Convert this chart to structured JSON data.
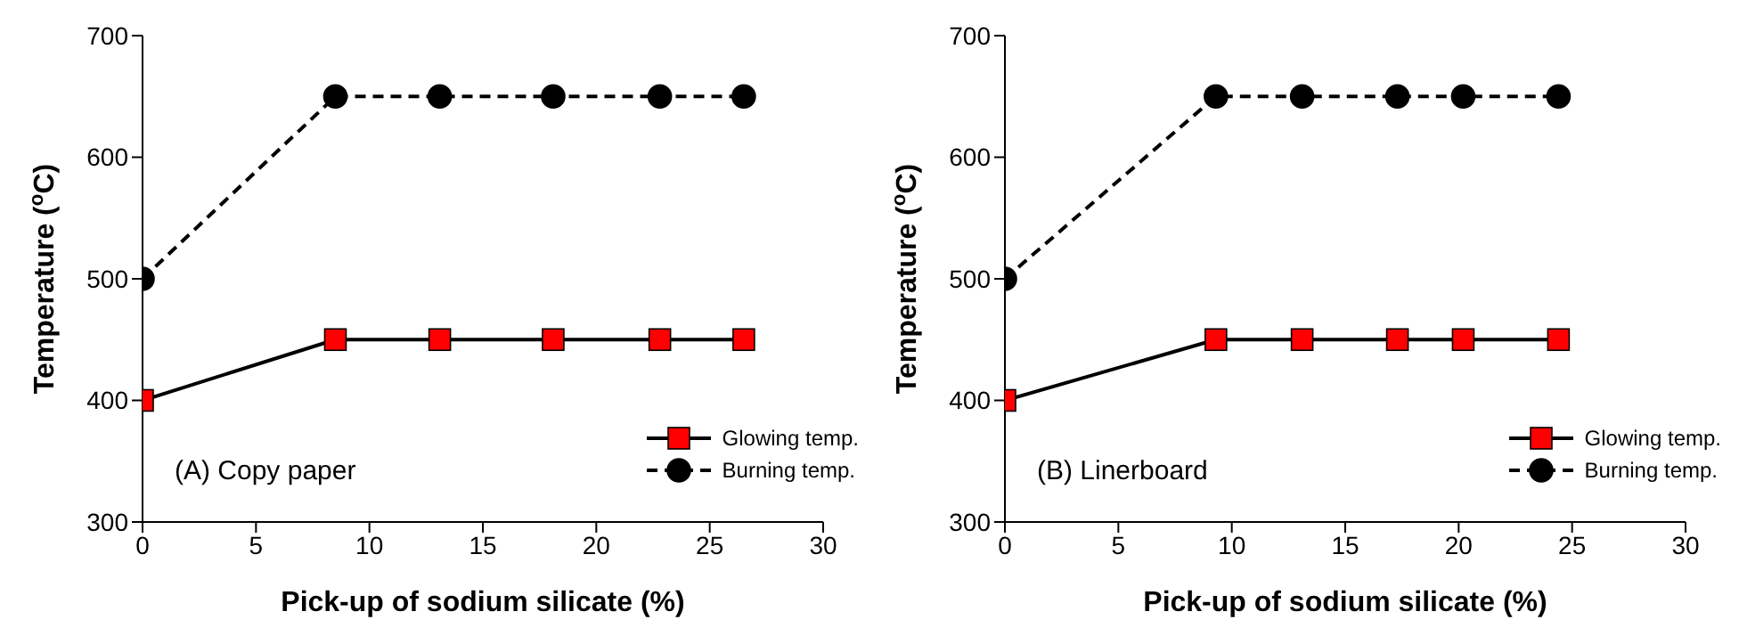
{
  "chart_data": [
    {
      "type": "line",
      "xlabel": "Pick-up of sodium silicate (%)",
      "ylabel": "Temperature ($^{o}$C)",
      "xlim": [
        0,
        30
      ],
      "xticks": [
        0,
        5,
        10,
        15,
        20,
        25,
        30
      ],
      "ylim": [
        300,
        700
      ],
      "yticks": [
        300,
        400,
        500,
        600,
        700
      ],
      "grid": false,
      "legend": "bottom right",
      "annotations": [
        "(A) Copy paper"
      ],
      "series": [
        {
          "name": "Glowing temp.",
          "color": "#ff0000",
          "marker": "square",
          "line_style": "solid",
          "x": [
            0,
            8.5,
            13.1,
            18.1,
            22.8,
            26.5
          ],
          "values": [
            400,
            450,
            450,
            450,
            450,
            450
          ]
        },
        {
          "name": "Burning temp.",
          "color": "#000000",
          "marker": "circle",
          "line_style": "dashed",
          "x": [
            0,
            8.5,
            13.1,
            18.1,
            22.8,
            26.5
          ],
          "values": [
            500,
            650,
            650,
            650,
            650,
            650
          ]
        }
      ]
    },
    {
      "type": "line",
      "xlabel": "Pick-up of sodium silicate (%)",
      "ylabel": "Temperature ($^{o}$C)",
      "xlim": [
        0,
        30
      ],
      "xticks": [
        0,
        5,
        10,
        15,
        20,
        25,
        30
      ],
      "ylim": [
        300,
        700
      ],
      "yticks": [
        300,
        400,
        500,
        600,
        700
      ],
      "grid": false,
      "legend": "bottom right",
      "annotations": [
        "(B) Linerboard"
      ],
      "series": [
        {
          "name": "Glowing temp.",
          "color": "#ff0000",
          "marker": "square",
          "line_style": "solid",
          "x": [
            0,
            9.3,
            13.1,
            17.3,
            20.2,
            24.4
          ],
          "values": [
            400,
            450,
            450,
            450,
            450,
            450
          ]
        },
        {
          "name": "Burning temp.",
          "color": "#000000",
          "marker": "circle",
          "line_style": "dashed",
          "x": [
            0,
            9.3,
            13.1,
            17.3,
            20.2,
            24.4
          ],
          "values": [
            500,
            650,
            650,
            650,
            650,
            650
          ]
        }
      ]
    }
  ]
}
